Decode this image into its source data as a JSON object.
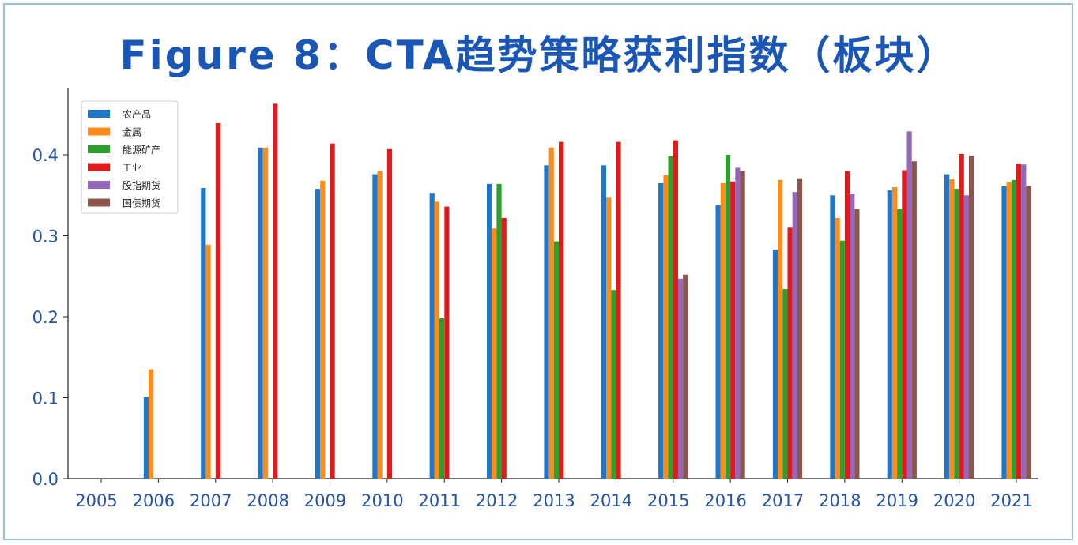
{
  "title": "Figure 8：CTA趋势策略获利指数（板块）",
  "chart_data": {
    "type": "bar",
    "title": "Figure 8：CTA趋势策略获利指数（板块）",
    "xlabel": "",
    "ylabel": "",
    "ylim": [
      0,
      0.47
    ],
    "yticks": [
      "0.0",
      "0.1",
      "0.2",
      "0.3",
      "0.4"
    ],
    "grid": false,
    "legend_position": "top-left",
    "categories": [
      "2005",
      "2006",
      "2007",
      "2008",
      "2009",
      "2010",
      "2011",
      "2012",
      "2013",
      "2014",
      "2015",
      "2016",
      "2017",
      "2018",
      "2019",
      "2020",
      "2021"
    ],
    "series": [
      {
        "name": "农产品",
        "color": "#1f77c9",
        "values": [
          0,
          0.101,
          0.359,
          0.409,
          0.358,
          0.376,
          0.353,
          0.364,
          0.387,
          0.387,
          0.365,
          0.338,
          0.283,
          0.35,
          0.356,
          0.376,
          0.361
        ]
      },
      {
        "name": "金属",
        "color": "#ff8c1a",
        "values": [
          0,
          0.135,
          0.289,
          0.409,
          0.368,
          0.38,
          0.342,
          0.309,
          0.409,
          0.347,
          0.375,
          0.365,
          0.369,
          0.322,
          0.36,
          0.37,
          0.366
        ]
      },
      {
        "name": "能源矿产",
        "color": "#2ca02c",
        "values": [
          0,
          0,
          0,
          0,
          0,
          0,
          0.198,
          0.364,
          0.293,
          0.233,
          0.398,
          0.4,
          0.234,
          0.294,
          0.333,
          0.358,
          0.369
        ]
      },
      {
        "name": "工业",
        "color": "#e31a1c",
        "values": [
          0,
          0,
          0.439,
          0.463,
          0.414,
          0.407,
          0.336,
          0.322,
          0.416,
          0.416,
          0.418,
          0.367,
          0.31,
          0.38,
          0.381,
          0.401,
          0.389
        ]
      },
      {
        "name": "股指期货",
        "color": "#9467bd",
        "values": [
          0,
          0,
          0,
          0,
          0,
          0,
          0,
          0,
          0,
          0,
          0.247,
          0.384,
          0.354,
          0.352,
          0.429,
          0.35,
          0.388
        ]
      },
      {
        "name": "国债期货",
        "color": "#8c564b",
        "values": [
          0,
          0,
          0,
          0,
          0,
          0,
          0,
          0,
          0,
          0,
          0.252,
          0.38,
          0.371,
          0.333,
          0.392,
          0.399,
          0.361
        ]
      }
    ]
  }
}
